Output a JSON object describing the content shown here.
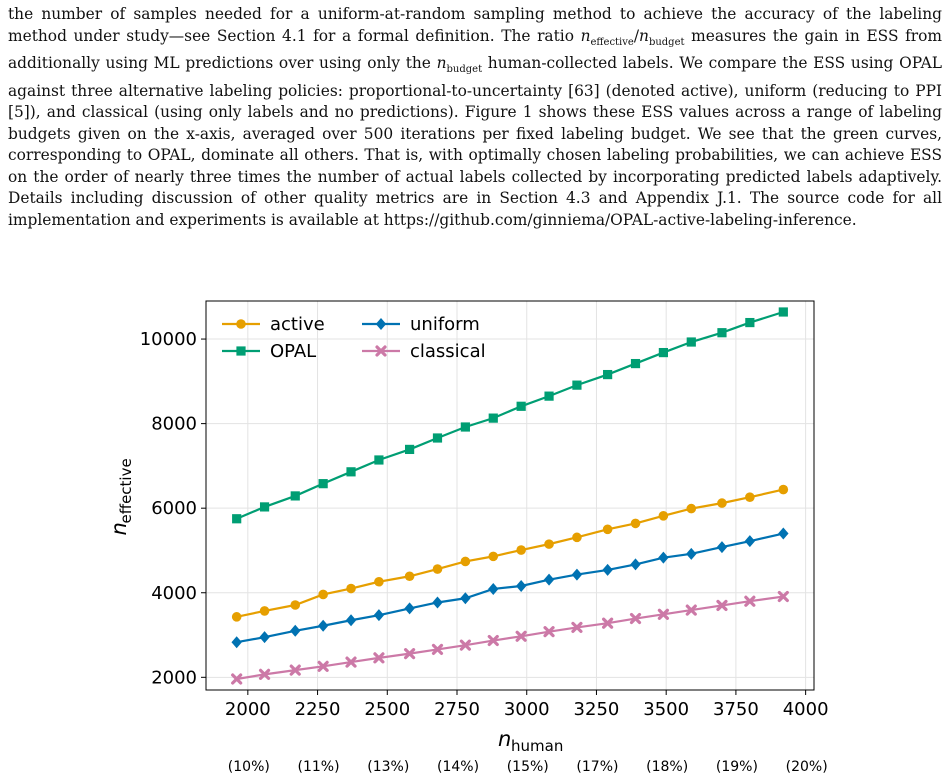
{
  "paragraph": {
    "part1": "the number of samples needed for a uniform-at-random sampling method to achieve the accuracy of the labeling method under study—see Section 4.1 for a formal definition. The ratio ",
    "ratio_num": "n",
    "ratio_num_sub": "effective",
    "ratio_sep": "/",
    "ratio_den": "n",
    "ratio_den_sub": "budget",
    "part2": " measures the gain in ESS from additionally using ML predictions over using only the ",
    "n2": "n",
    "n2_sub": "budget",
    "part3": " human-collected labels. We compare the ESS using OPAL against three alternative labeling policies: proportional-to-uncertainty [63] (denoted active), uniform (reducing to PPI [5]), and classical (using only labels and no predictions). Figure 1 shows these ESS values across a range of labeling budgets given on the x-axis, averaged over 500 iterations per fixed labeling budget. We see that the green curves, corresponding to OPAL, dominate all others. That is, with optimally chosen labeling probabilities, we can achieve ESS on the order of nearly three times the number of actual labels collected by incorporating predicted labels adaptively. Details including discussion of other quality metrics are in Section 4.3 and Appendix J.1. The source code for all implementation and experiments is available at https://github.com/ginniema/OPAL-active-labeling-inference."
  },
  "chart_data": {
    "type": "line",
    "xlabel_main": "n",
    "xlabel_sub": "human",
    "ylabel_main": "n",
    "ylabel_sub": "effective",
    "xlim": [
      1850,
      4030
    ],
    "ylim": [
      1700,
      10900
    ],
    "xticks": [
      2000,
      2250,
      2500,
      2750,
      3000,
      3250,
      3500,
      3750,
      4000
    ],
    "yticks": [
      2000,
      4000,
      6000,
      8000,
      10000
    ],
    "grid": true,
    "legend_position": "top-left",
    "x": [
      1960,
      2060,
      2170,
      2270,
      2370,
      2470,
      2580,
      2680,
      2780,
      2880,
      2980,
      3080,
      3180,
      3290,
      3390,
      3490,
      3590,
      3700,
      3800,
      3920
    ],
    "series": [
      {
        "name": "active",
        "color": "#e69f00",
        "marker": "circle",
        "values": [
          3430,
          3570,
          3710,
          3960,
          4100,
          4260,
          4390,
          4560,
          4740,
          4860,
          5010,
          5150,
          5310,
          5500,
          5640,
          5820,
          5990,
          6120,
          6260,
          6440
        ]
      },
      {
        "name": "OPAL",
        "color": "#009e73",
        "marker": "square",
        "values": [
          5750,
          6030,
          6290,
          6580,
          6860,
          7140,
          7390,
          7660,
          7920,
          8130,
          8410,
          8650,
          8910,
          9160,
          9420,
          9680,
          9930,
          10150,
          10390,
          10640
        ]
      },
      {
        "name": "uniform",
        "color": "#0072b2",
        "marker": "diamond",
        "values": [
          2830,
          2950,
          3100,
          3220,
          3350,
          3470,
          3630,
          3770,
          3870,
          4090,
          4160,
          4310,
          4430,
          4540,
          4670,
          4830,
          4920,
          5080,
          5220,
          5400
        ]
      },
      {
        "name": "classical",
        "color": "#cc79a7",
        "marker": "x",
        "values": [
          1960,
          2070,
          2170,
          2260,
          2360,
          2460,
          2560,
          2660,
          2760,
          2870,
          2970,
          3080,
          3180,
          3280,
          3390,
          3490,
          3590,
          3700,
          3800,
          3910
        ]
      }
    ],
    "budget_labels": {
      "x": [
        2000,
        2250,
        2500,
        2750,
        3000,
        3250,
        3500,
        3750,
        4000
      ],
      "labels": [
        "(10%)",
        "(11%)",
        "(13%)",
        "(14%)",
        "(15%)",
        "(17%)",
        "(18%)",
        "(19%)",
        "(20%)"
      ]
    }
  }
}
